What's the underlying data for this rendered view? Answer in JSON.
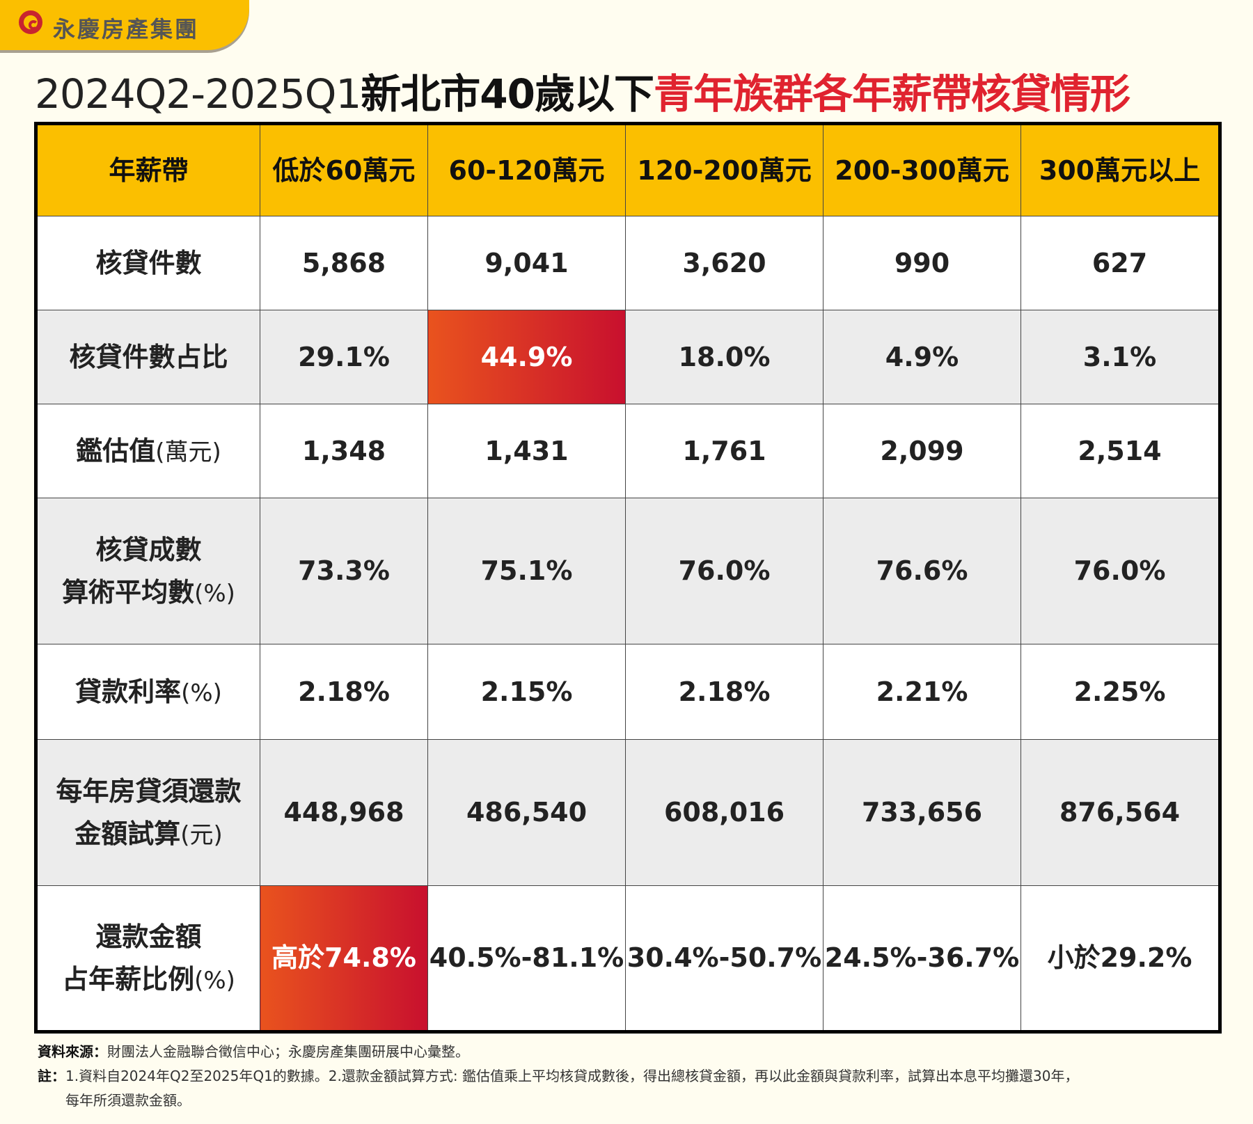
{
  "logo": {
    "text": "永慶房產集團"
  },
  "title": {
    "part1": "2024Q2-2025Q1",
    "part2": "新北市40歲以下",
    "part3": "青年族群各年薪帶核貸情形"
  },
  "colors": {
    "header": "#fbbf00",
    "highlight_start": "#e9531e",
    "highlight_end": "#c8102e",
    "title_accent": "#e0232f"
  },
  "table": {
    "header": [
      "年薪帶",
      "低於60萬元",
      "60-120萬元",
      "120-200萬元",
      "200-300萬元",
      "300萬元以上"
    ],
    "rows": [
      {
        "label": "核貸件數",
        "unit": "",
        "label2": "",
        "values": [
          "5,868",
          "9,041",
          "3,620",
          "990",
          "627"
        ]
      },
      {
        "label": "核貸件數占比",
        "unit": "",
        "label2": "",
        "values": [
          "29.1%",
          "44.9%",
          "18.0%",
          "4.9%",
          "3.1%"
        ]
      },
      {
        "label": "鑑估值",
        "unit": "(萬元)",
        "label2": "",
        "values": [
          "1,348",
          "1,431",
          "1,761",
          "2,099",
          "2,514"
        ]
      },
      {
        "label": "核貸成數",
        "label2": "算術平均數",
        "unit": "(%)",
        "values": [
          "73.3%",
          "75.1%",
          "76.0%",
          "76.6%",
          "76.0%"
        ]
      },
      {
        "label": "貸款利率",
        "unit": "(%)",
        "label2": "",
        "values": [
          "2.18%",
          "2.15%",
          "2.18%",
          "2.21%",
          "2.25%"
        ]
      },
      {
        "label": "每年房貸須還款",
        "label2": "金額試算",
        "unit": "(元)",
        "values": [
          "448,968",
          "486,540",
          "608,016",
          "733,656",
          "876,564"
        ]
      },
      {
        "label": "還款金額",
        "label2": "占年薪比例",
        "unit": "(%)",
        "values": [
          "高於74.8%",
          "40.5%-81.1%",
          "30.4%-50.7%",
          "24.5%-36.7%",
          "小於29.2%"
        ]
      }
    ]
  },
  "footer": {
    "source_label": "資料來源：",
    "source_text": "財團法人金融聯合徵信中心；永慶房產集團研展中心彙整。",
    "note_label": "註：",
    "note_text": "1.資料自2024年Q2至2025年Q1的數據。2.還款金額試算方式: 鑑估值乘上平均核貸成數後，得出總核貸金額，再以此金額與貸款利率，試算出本息平均攤還30年，",
    "note_text2": "每年所須還款金額。"
  }
}
